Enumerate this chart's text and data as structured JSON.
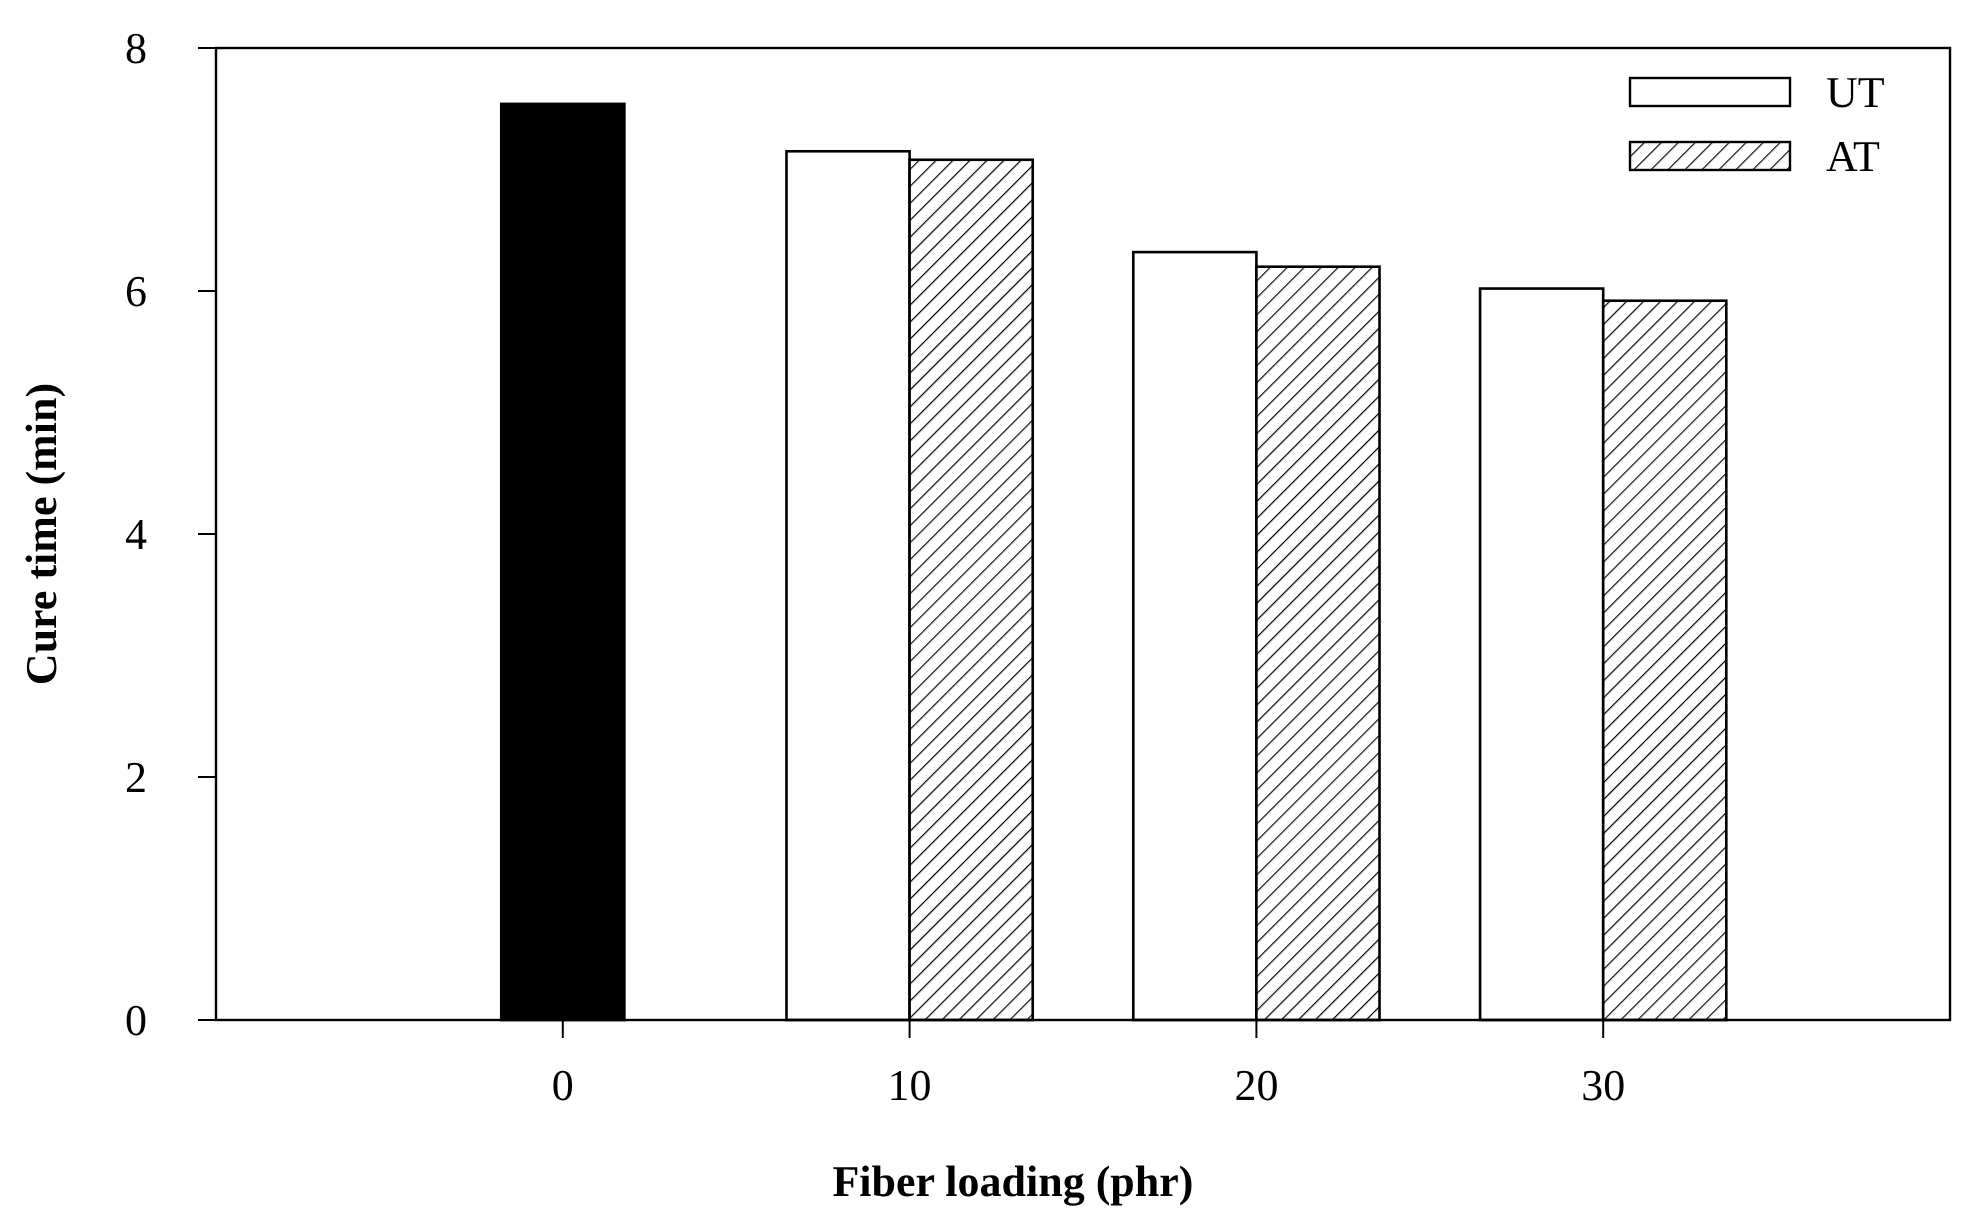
{
  "chart_data": {
    "type": "bar",
    "xlabel": "Fiber loading (phr)",
    "ylabel": "Cure time (min)",
    "categories": [
      "0",
      "10",
      "20",
      "30"
    ],
    "series": [
      {
        "color": "#000000",
        "values": [
          7.54,
          null,
          null,
          null
        ]
      },
      {
        "name": "UT",
        "color": "#ffffff",
        "values": [
          null,
          7.15,
          6.32,
          6.02
        ]
      },
      {
        "name": "AT",
        "color": "#000000",
        "values": [
          null,
          7.08,
          6.2,
          5.92
        ]
      }
    ],
    "ylim": [
      0,
      8
    ],
    "yticks": [
      0,
      2,
      4,
      6,
      8
    ],
    "grid": false,
    "legend": "top right"
  }
}
